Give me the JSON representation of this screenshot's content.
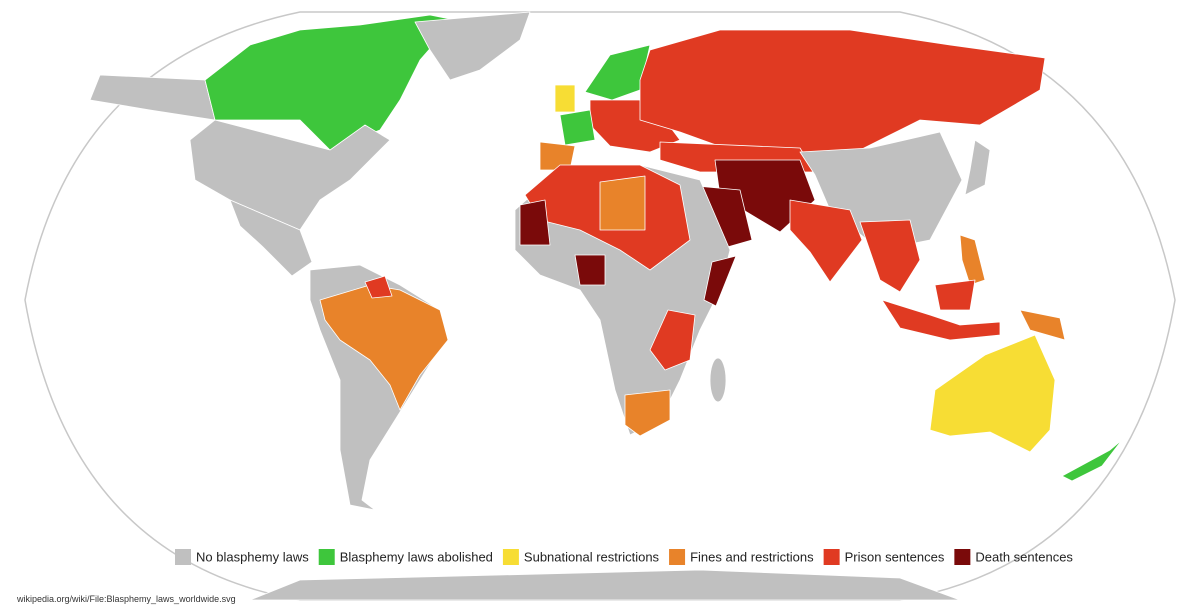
{
  "legend": [
    {
      "label": "No blasphemy laws",
      "color": "#c0c0c0"
    },
    {
      "label": "Blasphemy laws abolished",
      "color": "#3ec63c"
    },
    {
      "label": "Subnational restrictions",
      "color": "#f7dd34"
    },
    {
      "label": "Fines and restrictions",
      "color": "#e8832a"
    },
    {
      "label": "Prison sentences",
      "color": "#e03a22"
    },
    {
      "label": "Death sentences",
      "color": "#7a0a0a"
    }
  ],
  "source": "wikipedia.org/wiki/File:Blasphemy_laws_worldwide.svg"
}
